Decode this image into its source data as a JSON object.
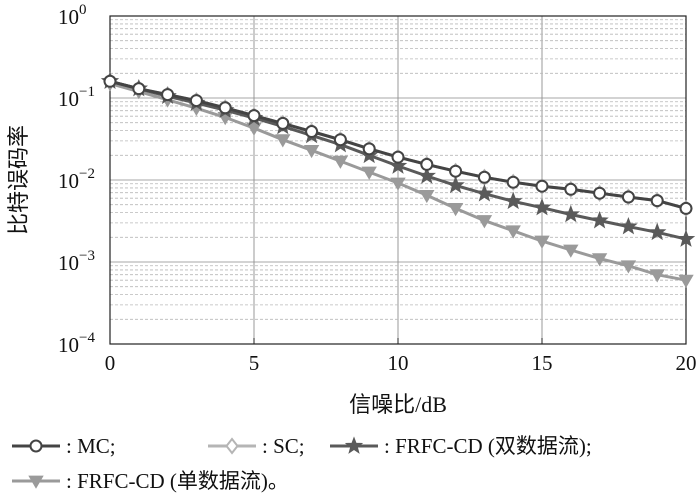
{
  "chart_data": {
    "type": "line",
    "title": "",
    "xlabel": "信噪比/dB",
    "ylabel": "比特误码率",
    "xlim": [
      0,
      20
    ],
    "ylim": [
      0.0001,
      1
    ],
    "yscale": "log",
    "grid": true,
    "x_ticks": [
      0,
      5,
      10,
      15,
      20
    ],
    "y_tick_exponents": [
      -4,
      -3,
      -2,
      -1,
      0
    ],
    "x": [
      0,
      1,
      2,
      3,
      4,
      5,
      6,
      7,
      8,
      9,
      10,
      11,
      12,
      13,
      14,
      15,
      16,
      17,
      18,
      19,
      20
    ],
    "series": [
      {
        "name": ": MC;",
        "color": "#444444",
        "marker": "circle",
        "values": [
          0.16,
          0.13,
          0.11,
          0.093,
          0.076,
          0.061,
          0.049,
          0.039,
          0.031,
          0.024,
          0.019,
          0.0155,
          0.0128,
          0.0108,
          0.0094,
          0.0084,
          0.0077,
          0.0069,
          0.0062,
          0.0056,
          0.0045
        ]
      },
      {
        "name": ": SC;",
        "color": "#b5b5b5",
        "marker": "diamond",
        "values": [
          0.16,
          0.13,
          0.11,
          0.093,
          0.076,
          0.061,
          0.049,
          0.039,
          0.031,
          0.024,
          0.019,
          0.0155,
          0.0128,
          0.0108,
          0.0094,
          0.0084,
          0.0077,
          0.0069,
          0.0062,
          0.0056,
          0.0045
        ]
      },
      {
        "name": ": FRFC-CD (双数据流);",
        "color": "#5a5a5a",
        "marker": "star",
        "values": [
          0.16,
          0.13,
          0.105,
          0.087,
          0.071,
          0.057,
          0.045,
          0.035,
          0.027,
          0.02,
          0.0148,
          0.0112,
          0.0086,
          0.0068,
          0.0055,
          0.0046,
          0.0038,
          0.0032,
          0.0027,
          0.0023,
          0.0019
        ]
      },
      {
        "name": ": FRFC-CD (单数据流)。",
        "color": "#9a9a9a",
        "marker": "triangle-down",
        "values": [
          0.15,
          0.12,
          0.095,
          0.075,
          0.058,
          0.043,
          0.031,
          0.023,
          0.017,
          0.0125,
          0.0092,
          0.0065,
          0.0045,
          0.0032,
          0.0024,
          0.0018,
          0.0014,
          0.0011,
          0.0009,
          0.0007,
          0.0006
        ]
      }
    ],
    "legend": {
      "placement": "bottom",
      "rows": [
        [
          0,
          1,
          2
        ],
        [
          3
        ]
      ]
    }
  }
}
